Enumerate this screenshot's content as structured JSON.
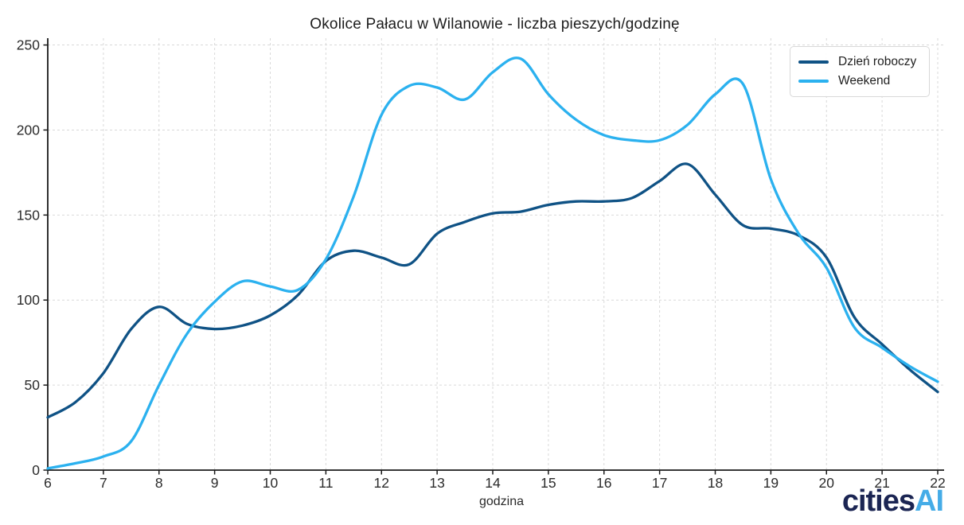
{
  "title": "Okolice Pałacu w Wilanowie -  liczba pieszych/godzinę",
  "chart_data": {
    "type": "line",
    "title": "Okolice Pałacu w Wilanowie -  liczba pieszych/godzinę",
    "xlabel": "godzina",
    "ylabel": "",
    "xlim": [
      6,
      22
    ],
    "ylim": [
      0,
      254
    ],
    "xticks": [
      6,
      7,
      8,
      9,
      10,
      11,
      12,
      13,
      14,
      15,
      16,
      17,
      18,
      19,
      20,
      21,
      22
    ],
    "yticks": [
      0,
      50,
      100,
      150,
      200,
      250
    ],
    "grid": true,
    "grid_style": "dashed",
    "legend_position": "top-right",
    "x": [
      6,
      6.5,
      7,
      7.5,
      8,
      8.5,
      9,
      9.5,
      10,
      10.5,
      11,
      11.5,
      12,
      12.5,
      13,
      13.5,
      14,
      14.5,
      15,
      15.5,
      16,
      16.5,
      17,
      17.5,
      18,
      18.5,
      19,
      19.5,
      20,
      20.5,
      21,
      21.5,
      22
    ],
    "series": [
      {
        "name": "Dzień roboczy",
        "color": "#0F5285",
        "values": [
          31,
          40,
          57,
          83,
          96,
          86,
          83,
          85,
          91,
          103,
          123,
          129,
          125,
          121,
          139,
          146,
          151,
          152,
          156,
          158,
          158,
          160,
          170,
          180,
          162,
          144,
          142,
          138,
          125,
          90,
          74,
          59,
          46
        ]
      },
      {
        "name": "Weekend",
        "color": "#2BB1EF",
        "values": [
          1,
          4,
          8,
          17,
          50,
          80,
          99,
          111,
          108,
          106,
          124,
          161,
          209,
          226,
          225,
          218,
          234,
          242,
          221,
          206,
          197,
          194,
          194,
          203,
          221,
          227,
          171,
          139,
          119,
          84,
          72,
          61,
          52
        ]
      }
    ]
  },
  "axes": {
    "spine_color": "#1a1a1a",
    "grid_color": "#d9d9d9",
    "tick_label_color": "#2b2b2b"
  },
  "branding": {
    "logo_text_dark": "cities",
    "logo_text_light": "AI",
    "color_dark": "#1B2553",
    "color_light": "#45ACE7"
  }
}
